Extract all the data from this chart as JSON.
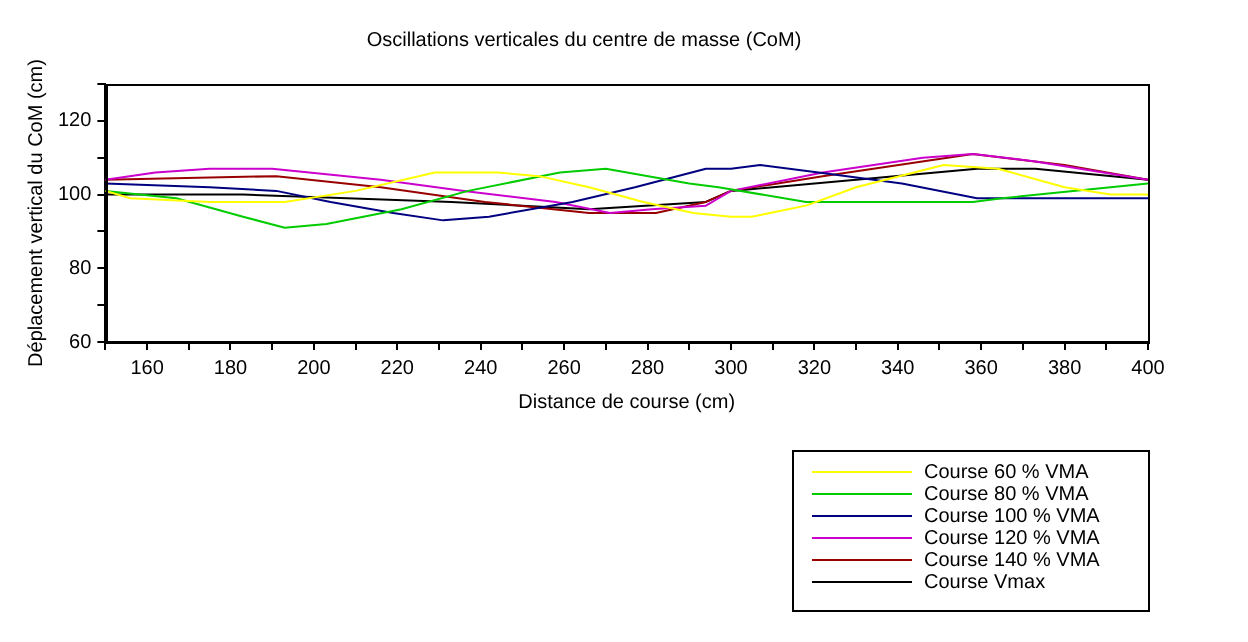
{
  "chart_data": {
    "type": "line",
    "title": "Oscillations verticales du centre de masse (CoM)",
    "xlabel": "Distance de course (cm)",
    "ylabel": "Déplacement vertical du CoM (cm)",
    "xlim": [
      150,
      400
    ],
    "ylim": [
      60,
      130
    ],
    "xticks": [
      {
        "value": 150,
        "label": null
      },
      160,
      {
        "value": 170,
        "label": null
      },
      180,
      {
        "value": 190,
        "label": null
      },
      200,
      {
        "value": 210,
        "label": null
      },
      220,
      {
        "value": 230,
        "label": null
      },
      240,
      {
        "value": 250,
        "label": null
      },
      260,
      {
        "value": 270,
        "label": null
      },
      280,
      {
        "value": 290,
        "label": null
      },
      300,
      {
        "value": 310,
        "label": null
      },
      320,
      {
        "value": 330,
        "label": null
      },
      340,
      {
        "value": 350,
        "label": null
      },
      360,
      {
        "value": 370,
        "label": null
      },
      380,
      {
        "value": 390,
        "label": null
      },
      400
    ],
    "yticks": [
      60,
      {
        "value": 70,
        "label": null
      },
      80,
      {
        "value": 90,
        "label": null
      },
      100,
      {
        "value": 110,
        "label": null
      },
      120,
      {
        "value": 130,
        "label": null
      }
    ],
    "grid": false,
    "legend": "bottom right",
    "marker": "none",
    "line_style": "solid",
    "series": [
      {
        "name": "Course 60 % VMA",
        "color": "#ffff00",
        "x": [
          150,
          156,
          175,
          193,
          210,
          229,
          244,
          254,
          266,
          279,
          291,
          300,
          305,
          318,
          330,
          351,
          364,
          380,
          391,
          400
        ],
        "values": [
          101,
          99,
          98,
          98,
          101,
          106,
          106,
          105,
          102,
          98,
          95,
          94,
          94,
          97,
          102,
          108,
          107,
          102,
          100,
          100
        ]
      },
      {
        "name": "Course 80 % VMA",
        "color": "#00cc00",
        "x": [
          150,
          167,
          183,
          193,
          203,
          221,
          237,
          259,
          270,
          290,
          297,
          318,
          358,
          365,
          400
        ],
        "values": [
          101,
          99,
          94,
          91,
          92,
          96,
          101,
          106,
          107,
          103,
          102,
          98,
          98,
          99,
          103
        ]
      },
      {
        "name": "Course 100 % VMA",
        "color": "#000080",
        "x": [
          150,
          175,
          191,
          204,
          219,
          231,
          242,
          262,
          277,
          294,
          300,
          307,
          321,
          341,
          359,
          400
        ],
        "values": [
          103,
          102,
          101,
          98,
          95,
          93,
          94,
          98,
          102,
          107,
          107,
          108,
          106,
          103,
          99,
          99
        ]
      },
      {
        "name": "Course 120 % VMA",
        "color": "#cc00cc",
        "x": [
          150,
          162,
          175,
          190,
          216,
          236,
          258,
          271,
          281,
          294,
          300,
          322,
          346,
          358,
          373,
          400
        ],
        "values": [
          104,
          106,
          107,
          107,
          104,
          101,
          98,
          95,
          96,
          97,
          101,
          106,
          110,
          111,
          109,
          104
        ]
      },
      {
        "name": "Course 140 % VMA",
        "color": "#990000",
        "x": [
          150,
          191,
          216,
          241,
          266,
          282,
          294,
          300,
          322,
          358,
          380,
          400
        ],
        "values": [
          104,
          105,
          102,
          98,
          95,
          95,
          98,
          101,
          105,
          111,
          108,
          104
        ]
      },
      {
        "name": "Course Vmax",
        "color": "#000000",
        "x": [
          150,
          183,
          208,
          233,
          266,
          294,
          300,
          330,
          359,
          373,
          400
        ],
        "values": [
          100,
          100,
          99,
          98,
          96,
          98,
          101,
          104,
          107,
          107,
          104
        ]
      }
    ]
  }
}
